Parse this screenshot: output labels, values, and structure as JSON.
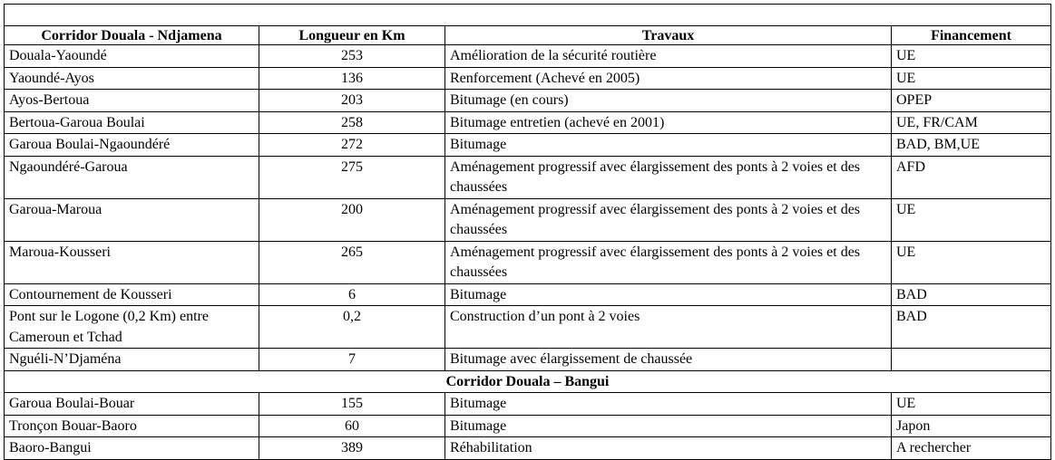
{
  "table": {
    "columns": [
      "Corridor Douala - Ndjamena",
      "Longueur en Km",
      "Travaux",
      "Financement"
    ],
    "rows": [
      {
        "corridor": "Douala-Yaoundé",
        "longueur": "253",
        "travaux": "Amélioration de la sécurité routière",
        "financement": "UE"
      },
      {
        "corridor": "Yaoundé-Ayos",
        "longueur": "136",
        "travaux": "Renforcement (Achevé en 2005)",
        "financement": "UE"
      },
      {
        "corridor": "Ayos-Bertoua",
        "longueur": "203",
        "travaux": "Bitumage (en cours)",
        "financement": "OPEP"
      },
      {
        "corridor": "Bertoua-Garoua Boulai",
        "longueur": "258",
        "travaux": "Bitumage entretien (achevé en 2001)",
        "financement": "UE, FR/CAM"
      },
      {
        "corridor": "Garoua Boulai-Ngaoundéré",
        "longueur": "272",
        "travaux": "Bitumage",
        "financement": "BAD, BM,UE"
      },
      {
        "corridor": "Ngaoundéré-Garoua",
        "longueur": "275",
        "travaux": "Aménagement progressif avec élargissement des ponts à 2 voies et des chaussées",
        "financement": "AFD"
      },
      {
        "corridor": "Garoua-Maroua",
        "longueur": "200",
        "travaux": "Aménagement progressif avec élargissement des ponts à 2 voies et des chaussées",
        "financement": "UE"
      },
      {
        "corridor": "Maroua-Kousseri",
        "longueur": "265",
        "travaux": "Aménagement progressif avec élargissement des ponts à 2 voies et des chaussées",
        "financement": "UE"
      },
      {
        "corridor": "Contournement de Kousseri",
        "longueur": "6",
        "travaux": "Bitumage",
        "financement": "BAD"
      },
      {
        "corridor": "Pont sur le Logone (0,2 Km) entre Cameroun et Tchad",
        "longueur": "0,2",
        "travaux": "Construction d’un pont à 2 voies",
        "financement": "BAD"
      },
      {
        "corridor": "Nguéli-N’Djaména",
        "longueur": "7",
        "travaux": "Bitumage avec élargissement de chaussée"
      }
    ],
    "section": "Corridor Douala – Bangui",
    "section_rows": [
      {
        "corridor": "Garoua Boulai-Bouar",
        "longueur": "155",
        "travaux": "Bitumage",
        "financement": "UE"
      },
      {
        "corridor": "Tronçon Bouar-Baoro",
        "longueur": "60",
        "travaux": "Bitumage",
        "financement": "Japon"
      },
      {
        "corridor": "Baoro-Bangui",
        "longueur": "389",
        "travaux": "Réhabilitation",
        "financement": "A rechercher"
      }
    ]
  }
}
